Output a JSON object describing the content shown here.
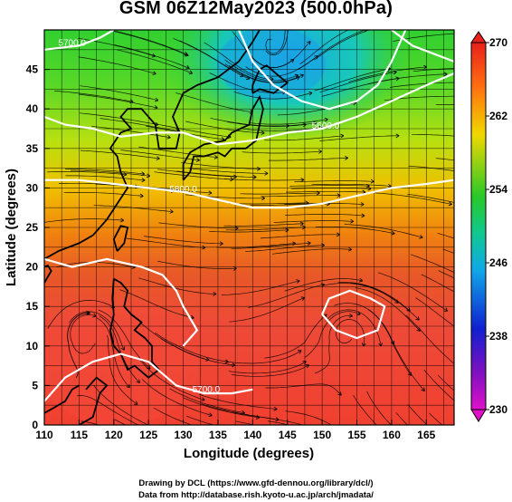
{
  "title": "GSM 06Z12May2023 (500.0hPa)",
  "map": {
    "xaxis": {
      "label": "Longitude (degrees)",
      "ticks": [
        110,
        115,
        120,
        125,
        130,
        135,
        140,
        145,
        150,
        155,
        160,
        165
      ],
      "range": [
        110,
        169
      ]
    },
    "yaxis": {
      "label": "Latitude  (degrees)",
      "ticks": [
        0,
        5,
        10,
        15,
        20,
        25,
        30,
        35,
        40,
        45
      ],
      "range": [
        0,
        50
      ]
    },
    "grid": "on",
    "contour_labels": [
      {
        "text": "5700.0",
        "lon": 133.3,
        "lat": 4.1
      },
      {
        "text": "5800.0",
        "lon": 130,
        "lat": 29.5
      },
      {
        "text": "5600.0",
        "lon": 150.5,
        "lat": 37.5
      },
      {
        "text": "5700.0",
        "lon": 114,
        "lat": 48
      }
    ],
    "colorbar": {
      "ticks": [
        270,
        262,
        254,
        246,
        238,
        230
      ],
      "range": [
        230,
        270
      ]
    }
  },
  "credits": {
    "line1": "Drawing by DCL (https://www.gfd-dennou.org/library/dcl/)",
    "line2": "Data from http://database.rish.kyoto-u.ac.jp/arch/jmadata/"
  }
}
